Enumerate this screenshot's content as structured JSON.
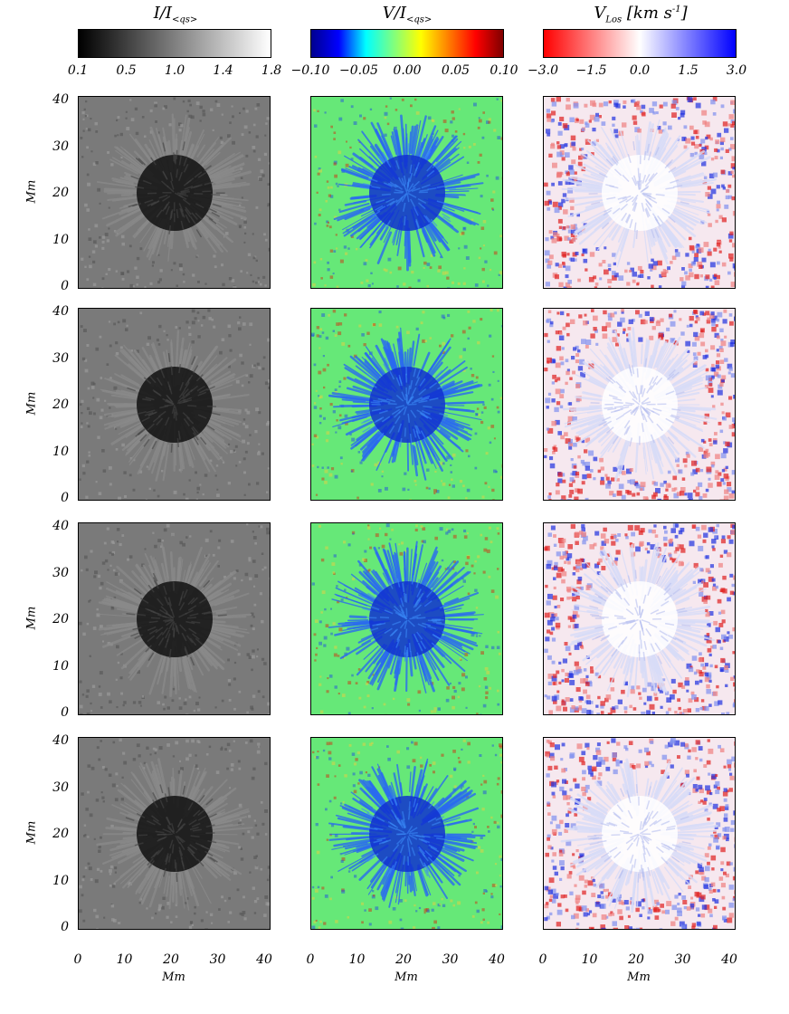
{
  "colorbars": [
    {
      "title": "I/I",
      "title_sub": "<qs>",
      "ticks": [
        "0.1",
        "0.5",
        "1.0",
        "1.4",
        "1.8"
      ],
      "gradient": [
        "#000000",
        "#ffffff"
      ]
    },
    {
      "title": "V/I",
      "title_sub": "<qs>",
      "ticks": [
        "−0.10",
        "−0.05",
        "0.00",
        "0.05",
        "0.10"
      ],
      "gradient": [
        "#00008f",
        "#0000ff",
        "#00ffff",
        "#7fff7f",
        "#ffff00",
        "#ff7f00",
        "#ff0000",
        "#7f0000"
      ]
    },
    {
      "title": "V",
      "title_sub": "Los",
      "title_rest": "[km s",
      "title_sup": "-1",
      "title_end": "]",
      "ticks": [
        "−3.0",
        "−1.5",
        "0.0",
        "1.5",
        "3.0"
      ],
      "gradient": [
        "#ff0000",
        "#ffffff",
        "#0000ff"
      ]
    }
  ],
  "axes": {
    "y_label": "Mm",
    "x_label": "Mm",
    "y_ticks": [
      "40",
      "30",
      "20",
      "10",
      "0"
    ],
    "x_ticks": [
      "0",
      "10",
      "20",
      "30",
      "40"
    ]
  },
  "panel_styles": {
    "intensity_bg": "#7a7a7a",
    "stokes_bg": "#66e878",
    "velocity_bg": "#f6e8ef"
  }
}
